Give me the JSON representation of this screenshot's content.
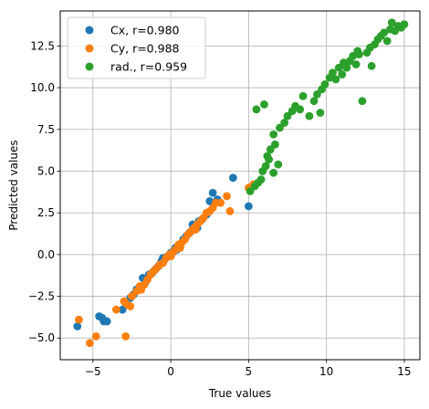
{
  "chart_data": {
    "type": "scatter",
    "title": "",
    "xlabel": "True values",
    "ylabel": "Predicted values",
    "xlim": [
      -7.1,
      16.0
    ],
    "ylim": [
      -6.3,
      14.6
    ],
    "xticks": [
      -5,
      0,
      5,
      10,
      15
    ],
    "yticks": [
      -5.0,
      -2.5,
      0.0,
      2.5,
      5.0,
      7.5,
      10.0,
      12.5
    ],
    "xtick_labels": [
      "−5",
      "0",
      "5",
      "10",
      "15"
    ],
    "ytick_labels": [
      "−5.0",
      "−2.5",
      "0.0",
      "2.5",
      "5.0",
      "7.5",
      "10.0",
      "12.5"
    ],
    "grid": true,
    "legend_position": "upper-left",
    "series": [
      {
        "name": "Cx, r=0.980",
        "color": "#1f77b4",
        "points": [
          [
            -6.0,
            -4.3
          ],
          [
            -4.6,
            -3.7
          ],
          [
            -4.4,
            -3.8
          ],
          [
            -4.3,
            -4.0
          ],
          [
            -4.1,
            -4.0
          ],
          [
            -3.1,
            -3.3
          ],
          [
            -2.9,
            -2.9
          ],
          [
            -2.6,
            -2.6
          ],
          [
            -2.4,
            -2.4
          ],
          [
            -2.2,
            -2.1
          ],
          [
            -1.8,
            -1.4
          ],
          [
            -1.6,
            -1.6
          ],
          [
            -1.4,
            -1.2
          ],
          [
            -1.2,
            -1.1
          ],
          [
            -1.0,
            -0.9
          ],
          [
            -0.8,
            -0.7
          ],
          [
            -0.6,
            -0.4
          ],
          [
            -0.4,
            -0.3
          ],
          [
            -0.2,
            -0.1
          ],
          [
            0.0,
            0.1
          ],
          [
            0.2,
            0.2
          ],
          [
            0.4,
            0.3
          ],
          [
            0.6,
            0.5
          ],
          [
            0.8,
            0.9
          ],
          [
            1.0,
            1.1
          ],
          [
            1.2,
            1.3
          ],
          [
            1.4,
            1.8
          ],
          [
            1.7,
            1.6
          ],
          [
            2.0,
            2.1
          ],
          [
            2.3,
            2.4
          ],
          [
            2.5,
            3.2
          ],
          [
            2.7,
            3.7
          ],
          [
            3.0,
            3.3
          ],
          [
            4.0,
            4.6
          ],
          [
            5.0,
            2.9
          ],
          [
            -0.5,
            -0.2
          ],
          [
            0.3,
            0.4
          ],
          [
            1.8,
            2.0
          ]
        ]
      },
      {
        "name": "Cy, r=0.988",
        "color": "#ff7f0e",
        "points": [
          [
            -5.2,
            -5.3
          ],
          [
            -4.8,
            -4.9
          ],
          [
            -5.9,
            -3.9
          ],
          [
            -2.9,
            -4.9
          ],
          [
            -3.5,
            -3.3
          ],
          [
            -3.0,
            -2.8
          ],
          [
            -2.8,
            -3.0
          ],
          [
            -2.5,
            -2.5
          ],
          [
            -2.2,
            -2.2
          ],
          [
            -2.0,
            -1.9
          ],
          [
            -1.7,
            -1.8
          ],
          [
            -1.5,
            -1.5
          ],
          [
            -1.3,
            -1.2
          ],
          [
            -1.1,
            -1.0
          ],
          [
            -0.9,
            -0.8
          ],
          [
            -0.7,
            -0.6
          ],
          [
            -0.5,
            -0.5
          ],
          [
            -0.3,
            -0.2
          ],
          [
            -0.1,
            0.0
          ],
          [
            0.1,
            0.1
          ],
          [
            0.3,
            0.3
          ],
          [
            0.5,
            0.6
          ],
          [
            0.7,
            0.7
          ],
          [
            0.9,
            0.9
          ],
          [
            1.1,
            1.2
          ],
          [
            1.3,
            1.4
          ],
          [
            1.5,
            1.6
          ],
          [
            1.7,
            1.8
          ],
          [
            1.9,
            2.0
          ],
          [
            2.1,
            2.2
          ],
          [
            2.3,
            2.5
          ],
          [
            2.5,
            2.6
          ],
          [
            2.7,
            2.8
          ],
          [
            2.9,
            3.1
          ],
          [
            3.2,
            3.1
          ],
          [
            3.6,
            3.5
          ],
          [
            3.8,
            2.6
          ],
          [
            5.0,
            4.0
          ],
          [
            5.3,
            4.2
          ],
          [
            -2.6,
            -3.1
          ],
          [
            -1.9,
            -2.1
          ],
          [
            0.0,
            -0.1
          ],
          [
            0.6,
            0.4
          ],
          [
            1.6,
            1.5
          ]
        ]
      },
      {
        "name": "rad., r=0.959",
        "color": "#2ca02c",
        "points": [
          [
            5.1,
            3.8
          ],
          [
            5.4,
            4.1
          ],
          [
            5.6,
            4.3
          ],
          [
            5.8,
            4.5
          ],
          [
            5.9,
            5.0
          ],
          [
            6.1,
            5.3
          ],
          [
            6.3,
            5.7
          ],
          [
            6.6,
            4.9
          ],
          [
            6.9,
            5.4
          ],
          [
            5.5,
            8.7
          ],
          [
            6.0,
            9.0
          ],
          [
            6.2,
            5.9
          ],
          [
            6.4,
            6.3
          ],
          [
            6.7,
            6.6
          ],
          [
            6.6,
            7.2
          ],
          [
            7.0,
            7.6
          ],
          [
            7.3,
            7.9
          ],
          [
            7.5,
            8.3
          ],
          [
            7.8,
            8.6
          ],
          [
            8.0,
            8.9
          ],
          [
            8.3,
            8.7
          ],
          [
            8.5,
            9.5
          ],
          [
            8.9,
            8.3
          ],
          [
            9.2,
            9.2
          ],
          [
            9.4,
            9.6
          ],
          [
            9.6,
            8.5
          ],
          [
            9.7,
            9.9
          ],
          [
            9.9,
            10.2
          ],
          [
            10.2,
            10.6
          ],
          [
            10.4,
            10.9
          ],
          [
            10.6,
            10.5
          ],
          [
            10.8,
            11.2
          ],
          [
            11.0,
            10.8
          ],
          [
            11.1,
            11.5
          ],
          [
            11.3,
            11.2
          ],
          [
            11.5,
            11.6
          ],
          [
            11.7,
            11.9
          ],
          [
            11.9,
            11.4
          ],
          [
            12.1,
            12.0
          ],
          [
            12.3,
            9.2
          ],
          [
            12.6,
            12.1
          ],
          [
            12.8,
            12.4
          ],
          [
            13.1,
            12.6
          ],
          [
            13.3,
            12.9
          ],
          [
            13.5,
            13.1
          ],
          [
            13.7,
            13.3
          ],
          [
            13.9,
            12.8
          ],
          [
            14.1,
            13.5
          ],
          [
            14.4,
            13.4
          ],
          [
            14.6,
            13.7
          ],
          [
            14.8,
            13.6
          ],
          [
            15.0,
            13.8
          ],
          [
            14.2,
            13.9
          ],
          [
            12.9,
            11.3
          ],
          [
            12.0,
            12.2
          ]
        ]
      }
    ]
  }
}
